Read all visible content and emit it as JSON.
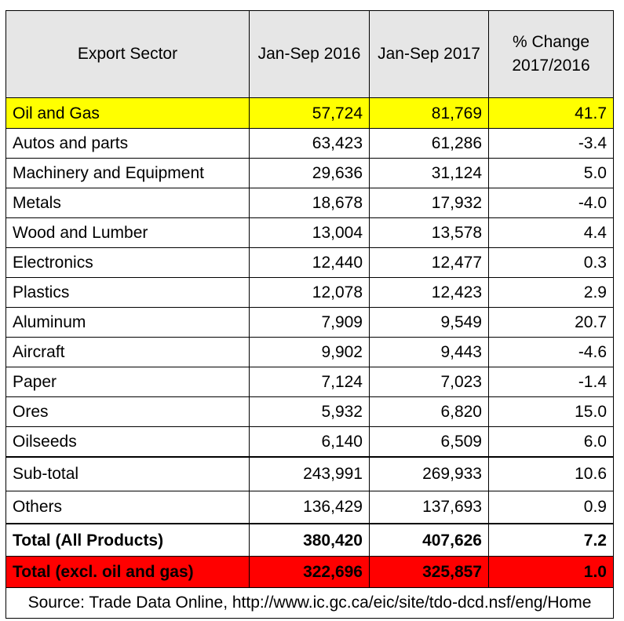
{
  "chart_data": {
    "type": "table",
    "columns": [
      "Export Sector",
      "Jan-Sep 2016",
      "Jan-Sep 2017",
      "% Change 2017/2016"
    ],
    "header": {
      "sector": "Export Sector",
      "y2016": "Jan-Sep 2016",
      "y2017": "Jan-Sep 2017",
      "change_line1": "% Change",
      "change_line2": "2017/2016"
    },
    "rows": [
      {
        "sector": "Oil and Gas",
        "y2016": "57,724",
        "y2017": "81,769",
        "change": "41.7"
      },
      {
        "sector": "Autos and parts",
        "y2016": "63,423",
        "y2017": "61,286",
        "change": "-3.4"
      },
      {
        "sector": "Machinery and Equipment",
        "y2016": "29,636",
        "y2017": "31,124",
        "change": "5.0"
      },
      {
        "sector": "Metals",
        "y2016": "18,678",
        "y2017": "17,932",
        "change": "-4.0"
      },
      {
        "sector": "Wood and Lumber",
        "y2016": "13,004",
        "y2017": "13,578",
        "change": "4.4"
      },
      {
        "sector": "Electronics",
        "y2016": "12,440",
        "y2017": "12,477",
        "change": "0.3"
      },
      {
        "sector": "Plastics",
        "y2016": "12,078",
        "y2017": "12,423",
        "change": "2.9"
      },
      {
        "sector": "Aluminum",
        "y2016": "7,909",
        "y2017": "9,549",
        "change": "20.7"
      },
      {
        "sector": "Aircraft",
        "y2016": "9,902",
        "y2017": "9,443",
        "change": "-4.6"
      },
      {
        "sector": "Paper",
        "y2016": "7,124",
        "y2017": "7,023",
        "change": "-1.4"
      },
      {
        "sector": "Ores",
        "y2016": "5,932",
        "y2017": "6,820",
        "change": "15.0"
      },
      {
        "sector": "Oilseeds",
        "y2016": "6,140",
        "y2017": "6,509",
        "change": "6.0"
      }
    ],
    "subtotal": {
      "sector": "Sub-total",
      "y2016": "243,991",
      "y2017": "269,933",
      "change": "10.6"
    },
    "others": {
      "sector": "Others",
      "y2016": "136,429",
      "y2017": "137,693",
      "change": "0.9"
    },
    "total": {
      "sector": "Total (All Products)",
      "y2016": "380,420",
      "y2017": "407,626",
      "change": "7.2"
    },
    "total_excl": {
      "sector": "Total (excl. oil and gas)",
      "y2016": "322,696",
      "y2017": "325,857",
      "change": "1.0"
    },
    "source": "Source: Trade Data Online, http://www.ic.gc.ca/eic/site/tdo-dcd.nsf/eng/Home"
  },
  "colors": {
    "header_bg": "#e6e6e6",
    "highlight_row": "#ffff00",
    "total_excl_row": "#ff0000"
  }
}
